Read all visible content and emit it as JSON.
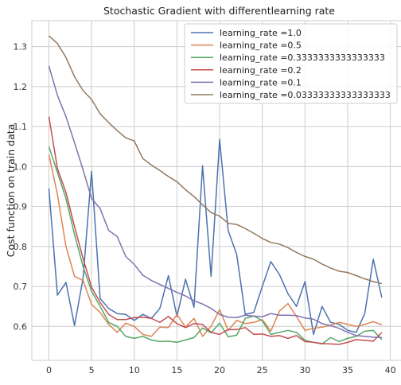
{
  "chart_data": {
    "type": "line",
    "title": "Stochastic Gradient with differentlearning rate",
    "xlabel": "",
    "ylabel": "Cost function on train data",
    "xlim": [
      -2,
      41.9
    ],
    "ylim": [
      0.515,
      1.365
    ],
    "xticks": [
      0,
      5,
      10,
      15,
      20,
      25,
      30,
      35,
      40
    ],
    "yticks": [
      0.6,
      0.7,
      0.8,
      0.9,
      1.0,
      1.1,
      1.2,
      1.3
    ],
    "ytick_labels": [
      "0.6",
      "0.7",
      "0.8",
      "0.9",
      "1.0",
      "1.1",
      "1.2",
      "1.3"
    ],
    "grid": true,
    "legend_position": "top-right",
    "x": [
      0,
      1,
      2,
      3,
      4,
      5,
      6,
      7,
      8,
      9,
      10,
      11,
      12,
      13,
      14,
      15,
      16,
      17,
      18,
      19,
      20,
      21,
      22,
      23,
      24,
      25,
      26,
      27,
      28,
      29,
      30,
      31,
      32,
      33,
      34,
      35,
      36,
      37,
      38,
      39
    ],
    "series": [
      {
        "name": "learning_rate =1.0",
        "color": "#4c72b0",
        "values": [
          0.945,
          0.678,
          0.71,
          0.602,
          0.72,
          0.988,
          0.67,
          0.645,
          0.632,
          0.63,
          0.615,
          0.63,
          0.62,
          0.645,
          0.727,
          0.625,
          0.718,
          0.648,
          1.002,
          0.725,
          1.068,
          0.84,
          0.78,
          0.63,
          0.635,
          0.7,
          0.762,
          0.73,
          0.682,
          0.65,
          0.712,
          0.58,
          0.65,
          0.61,
          0.605,
          0.59,
          0.585,
          0.632,
          0.768,
          0.672
        ]
      },
      {
        "name": "learning_rate =0.5",
        "color": "#dd8452",
        "values": [
          1.03,
          0.93,
          0.8,
          0.725,
          0.715,
          0.655,
          0.635,
          0.605,
          0.585,
          0.608,
          0.6,
          0.58,
          0.575,
          0.598,
          0.597,
          0.63,
          0.598,
          0.62,
          0.575,
          0.6,
          0.642,
          0.59,
          0.615,
          0.607,
          0.61,
          0.617,
          0.588,
          0.638,
          0.657,
          0.625,
          0.59,
          0.595,
          0.598,
          0.603,
          0.61,
          0.605,
          0.6,
          0.605,
          0.612,
          0.604
        ]
      },
      {
        "name": "learning_rate =0.3333333333333333",
        "color": "#55a868",
        "values": [
          1.05,
          0.985,
          0.92,
          0.83,
          0.75,
          0.688,
          0.65,
          0.61,
          0.6,
          0.575,
          0.57,
          0.575,
          0.566,
          0.562,
          0.563,
          0.56,
          0.566,
          0.572,
          0.596,
          0.584,
          0.608,
          0.574,
          0.578,
          0.62,
          0.626,
          0.614,
          0.58,
          0.585,
          0.59,
          0.585,
          0.565,
          0.56,
          0.556,
          0.572,
          0.562,
          0.57,
          0.575,
          0.588,
          0.59,
          0.567
        ]
      },
      {
        "name": "learning_rate =0.2",
        "color": "#c44e52",
        "values": [
          1.125,
          0.995,
          0.935,
          0.85,
          0.77,
          0.698,
          0.66,
          0.63,
          0.617,
          0.617,
          0.622,
          0.623,
          0.62,
          0.61,
          0.625,
          0.607,
          0.597,
          0.607,
          0.605,
          0.585,
          0.58,
          0.592,
          0.592,
          0.597,
          0.58,
          0.581,
          0.575,
          0.577,
          0.57,
          0.577,
          0.562,
          0.56,
          0.557,
          0.556,
          0.555,
          0.56,
          0.567,
          0.565,
          0.563,
          0.585
        ]
      },
      {
        "name": "learning_rate =0.1",
        "color": "#8172b2",
        "values": [
          1.252,
          1.178,
          1.125,
          1.06,
          0.992,
          0.92,
          0.895,
          0.84,
          0.825,
          0.775,
          0.755,
          0.728,
          0.715,
          0.705,
          0.695,
          0.685,
          0.676,
          0.664,
          0.656,
          0.645,
          0.63,
          0.623,
          0.622,
          0.628,
          0.626,
          0.624,
          0.632,
          0.628,
          0.628,
          0.627,
          0.621,
          0.618,
          0.607,
          0.602,
          0.595,
          0.585,
          0.577,
          0.575,
          0.573,
          0.572
        ]
      },
      {
        "name": "learning_rate =0.03333333333333333",
        "color": "#937860",
        "values": [
          1.327,
          1.308,
          1.273,
          1.225,
          1.19,
          1.168,
          1.132,
          1.11,
          1.09,
          1.072,
          1.064,
          1.02,
          1.004,
          0.99,
          0.975,
          0.962,
          0.942,
          0.925,
          0.904,
          0.885,
          0.876,
          0.858,
          0.855,
          0.845,
          0.833,
          0.82,
          0.81,
          0.806,
          0.797,
          0.785,
          0.775,
          0.768,
          0.756,
          0.746,
          0.738,
          0.735,
          0.727,
          0.719,
          0.712,
          0.707
        ]
      }
    ]
  }
}
